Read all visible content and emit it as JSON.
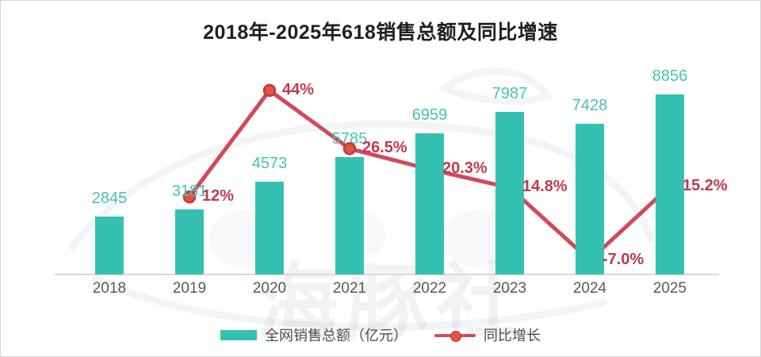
{
  "title": "2018年-2025年618销售总额及同比增速",
  "watermark": {
    "text": "海豚社"
  },
  "colors": {
    "bar": "#35c1b2",
    "bar_label": "#46c2b3",
    "line": "#d2495a",
    "marker_fill": "#e05540",
    "marker_ring": "#c23a40",
    "pct_label": "#bd3a51",
    "axis_line": "#d9d9d9",
    "year_label": "#595959"
  },
  "legend": {
    "bar_label": "全网销售总额（亿元）",
    "line_label": "同比增长"
  },
  "chart_data": {
    "type": "bar",
    "title": "2018年-2025年618销售总额及同比增速",
    "categories": [
      "2018",
      "2019",
      "2020",
      "2021",
      "2022",
      "2023",
      "2024",
      "2025"
    ],
    "series": [
      {
        "name": "全网销售总额（亿元）",
        "type": "bar",
        "values": [
          2845,
          3181,
          4573,
          5785,
          6959,
          7987,
          7428,
          8856
        ]
      },
      {
        "name": "同比增长",
        "type": "line",
        "values": [
          null,
          12,
          44,
          26.5,
          20.3,
          14.8,
          -7.0,
          15.2
        ],
        "labels": [
          "",
          "12%",
          "44%",
          "26.5%",
          "20.3%",
          "14.8%",
          "-7.0%",
          "15.2%"
        ]
      }
    ],
    "xlabel": "",
    "ylabel": "",
    "grid": false,
    "legend_position": "bottom",
    "value_labels_shown": true
  }
}
